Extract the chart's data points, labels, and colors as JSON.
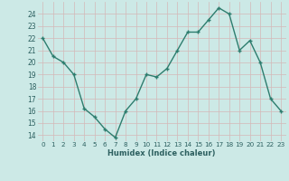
{
  "x": [
    0,
    1,
    2,
    3,
    4,
    5,
    6,
    7,
    8,
    9,
    10,
    11,
    12,
    13,
    14,
    15,
    16,
    17,
    18,
    19,
    20,
    21,
    22,
    23
  ],
  "y": [
    22,
    20.5,
    20,
    19,
    16.2,
    15.5,
    14.5,
    13.8,
    16,
    17,
    19,
    18.8,
    19.5,
    21,
    22.5,
    22.5,
    23.5,
    24.5,
    24,
    21,
    21.8,
    20,
    17,
    16
  ],
  "line_color": "#2d7d6e",
  "marker_color": "#2d7d6e",
  "bg_color": "#cce9e6",
  "grid_color": "#b0d5d0",
  "xlabel": "Humidex (Indice chaleur)",
  "ylabel_ticks": [
    14,
    15,
    16,
    17,
    18,
    19,
    20,
    21,
    22,
    23,
    24
  ],
  "xlim": [
    -0.5,
    23.5
  ],
  "ylim": [
    13.5,
    25.0
  ],
  "xtick_labels": [
    "0",
    "1",
    "2",
    "3",
    "4",
    "5",
    "6",
    "7",
    "8",
    "9",
    "10",
    "11",
    "12",
    "13",
    "14",
    "15",
    "16",
    "17",
    "18",
    "19",
    "20",
    "21",
    "22",
    "23"
  ]
}
